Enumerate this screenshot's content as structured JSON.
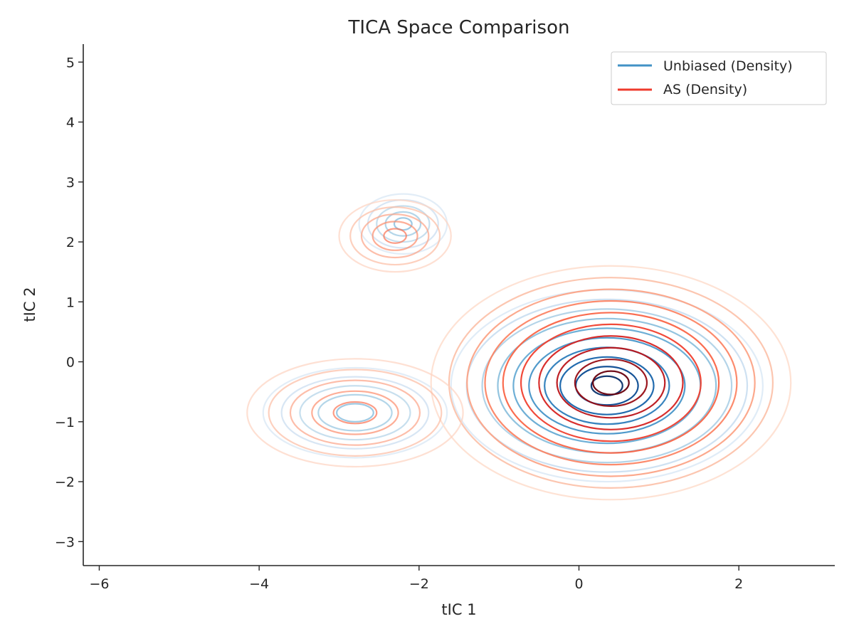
{
  "chart_data": {
    "type": "contour",
    "title": "TICA Space Comparison",
    "xlabel": "tIC 1",
    "ylabel": "tIC 2",
    "xlim": [
      -6.2,
      3.2
    ],
    "ylim": [
      -3.4,
      5.3
    ],
    "x_ticks": [
      -6,
      -4,
      -2,
      0,
      2
    ],
    "x_tick_labels": [
      "−6",
      "−4",
      "−2",
      "0",
      "2"
    ],
    "y_ticks": [
      -3,
      -2,
      -1,
      0,
      1,
      2,
      3,
      4,
      5
    ],
    "y_tick_labels": [
      "−3",
      "−2",
      "−1",
      "0",
      "1",
      "2",
      "3",
      "4",
      "5"
    ],
    "grid": false,
    "legend_position": "top-right",
    "series": [
      {
        "name": "Unbiased (Density)",
        "color": "#4292c6",
        "colormap": "Blues",
        "modes": [
          {
            "center": [
              0.35,
              -0.4
            ],
            "radius": [
              1.95,
              1.6
            ]
          },
          {
            "center": [
              -2.8,
              -0.85
            ],
            "radius": [
              1.15,
              0.75
            ]
          },
          {
            "center": [
              -2.2,
              2.3
            ],
            "radius": [
              0.55,
              0.5
            ]
          }
        ],
        "levels": 10
      },
      {
        "name": "AS (Density)",
        "color": "#ef3b2c",
        "colormap": "Reds",
        "modes": [
          {
            "center": [
              0.4,
              -0.35
            ],
            "radius": [
              2.25,
              1.95
            ]
          },
          {
            "center": [
              -2.8,
              -0.85
            ],
            "radius": [
              1.35,
              0.9
            ]
          },
          {
            "center": [
              -2.3,
              2.1
            ],
            "radius": [
              0.7,
              0.6
            ]
          }
        ],
        "levels": 10
      }
    ]
  }
}
